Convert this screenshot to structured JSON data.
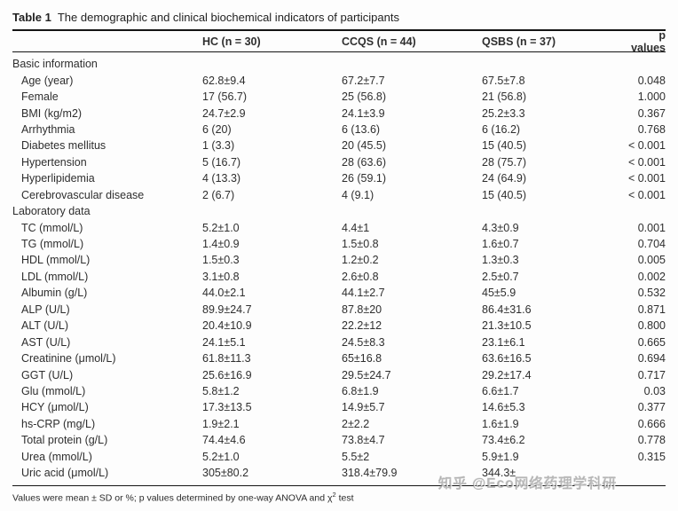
{
  "title": {
    "label": "Table 1",
    "text": "The demographic and clinical biochemical indicators of participants"
  },
  "table": {
    "columns": {
      "group1": "HC (n = 30)",
      "group2": "CCQS (n = 44)",
      "group3": "QSBS (n = 37)",
      "p": "p values"
    },
    "sections": [
      {
        "header": "Basic information",
        "rows": [
          {
            "label": "Age (year)",
            "hc": "62.8±9.4",
            "ccqs": "67.2±7.7",
            "qsbs": "67.5±7.8",
            "p": "0.048"
          },
          {
            "label": "Female",
            "hc": "17 (56.7)",
            "ccqs": "25 (56.8)",
            "qsbs": "21 (56.8)",
            "p": "1.000"
          },
          {
            "label": "BMI (kg/m2)",
            "hc": "24.7±2.9",
            "ccqs": "24.1±3.9",
            "qsbs": "25.2±3.3",
            "p": "0.367"
          },
          {
            "label": "Arrhythmia",
            "hc": "6 (20)",
            "ccqs": "6 (13.6)",
            "qsbs": "6 (16.2)",
            "p": "0.768"
          },
          {
            "label": "Diabetes mellitus",
            "hc": "1 (3.3)",
            "ccqs": "20 (45.5)",
            "qsbs": "15 (40.5)",
            "p": "< 0.001"
          },
          {
            "label": "Hypertension",
            "hc": "5 (16.7)",
            "ccqs": "28 (63.6)",
            "qsbs": "28 (75.7)",
            "p": "< 0.001"
          },
          {
            "label": "Hyperlipidemia",
            "hc": "4 (13.3)",
            "ccqs": "26 (59.1)",
            "qsbs": "24 (64.9)",
            "p": "< 0.001"
          },
          {
            "label": "Cerebrovascular disease",
            "hc": "2 (6.7)",
            "ccqs": "4 (9.1)",
            "qsbs": "15 (40.5)",
            "p": "< 0.001"
          }
        ]
      },
      {
        "header": "Laboratory data",
        "rows": [
          {
            "label": "TC (mmol/L)",
            "hc": "5.2±1.0",
            "ccqs": "4.4±1",
            "qsbs": "4.3±0.9",
            "p": "0.001"
          },
          {
            "label": "TG (mmol/L)",
            "hc": "1.4±0.9",
            "ccqs": "1.5±0.8",
            "qsbs": "1.6±0.7",
            "p": "0.704"
          },
          {
            "label": "HDL (mmol/L)",
            "hc": "1.5±0.3",
            "ccqs": "1.2±0.2",
            "qsbs": "1.3±0.3",
            "p": "0.005"
          },
          {
            "label": "LDL (mmol/L)",
            "hc": "3.1±0.8",
            "ccqs": "2.6±0.8",
            "qsbs": "2.5±0.7",
            "p": "0.002"
          },
          {
            "label": "Albumin (g/L)",
            "hc": "44.0±2.1",
            "ccqs": "44.1±2.7",
            "qsbs": "45±5.9",
            "p": "0.532"
          },
          {
            "label": "ALP (U/L)",
            "hc": "89.9±24.7",
            "ccqs": "87.8±20",
            "qsbs": "86.4±31.6",
            "p": "0.871"
          },
          {
            "label": "ALT (U/L)",
            "hc": "20.4±10.9",
            "ccqs": "22.2±12",
            "qsbs": "21.3±10.5",
            "p": "0.800"
          },
          {
            "label": "AST (U/L)",
            "hc": "24.1±5.1",
            "ccqs": "24.5±8.3",
            "qsbs": "23.1±6.1",
            "p": "0.665"
          },
          {
            "label": "Creatinine (μmol/L)",
            "hc": "61.8±11.3",
            "ccqs": "65±16.8",
            "qsbs": "63.6±16.5",
            "p": "0.694"
          },
          {
            "label": "GGT (U/L)",
            "hc": "25.6±16.9",
            "ccqs": "29.5±24.7",
            "qsbs": "29.2±17.4",
            "p": "0.717"
          },
          {
            "label": "Glu (mmol/L)",
            "hc": "5.8±1.2",
            "ccqs": "6.8±1.9",
            "qsbs": "6.6±1.7",
            "p": "0.03"
          },
          {
            "label": "HCY (μmol/L)",
            "hc": "17.3±13.5",
            "ccqs": "14.9±5.7",
            "qsbs": "14.6±5.3",
            "p": "0.377"
          },
          {
            "label": "hs-CRP (mg/L)",
            "hc": "1.9±2.1",
            "ccqs": "2±2.2",
            "qsbs": "1.6±1.9",
            "p": "0.666"
          },
          {
            "label": "Total protein (g/L)",
            "hc": "74.4±4.6",
            "ccqs": "73.8±4.7",
            "qsbs": "73.4±6.2",
            "p": "0.778"
          },
          {
            "label": "Urea (mmol/L)",
            "hc": "5.2±1.0",
            "ccqs": "5.5±2",
            "qsbs": "5.9±1.9",
            "p": "0.315"
          },
          {
            "label": "Uric acid (μmol/L)",
            "hc": "305±80.2",
            "ccqs": "318.4±79.9",
            "qsbs": "344.3±",
            "p": ""
          }
        ]
      }
    ]
  },
  "footnote": {
    "pre": "Values were mean ± SD or %; p values determined by one-way ANOVA and χ",
    "sup": "2",
    "post": " test"
  },
  "watermark": {
    "text": "知乎 @Eco网络药理学科研"
  }
}
